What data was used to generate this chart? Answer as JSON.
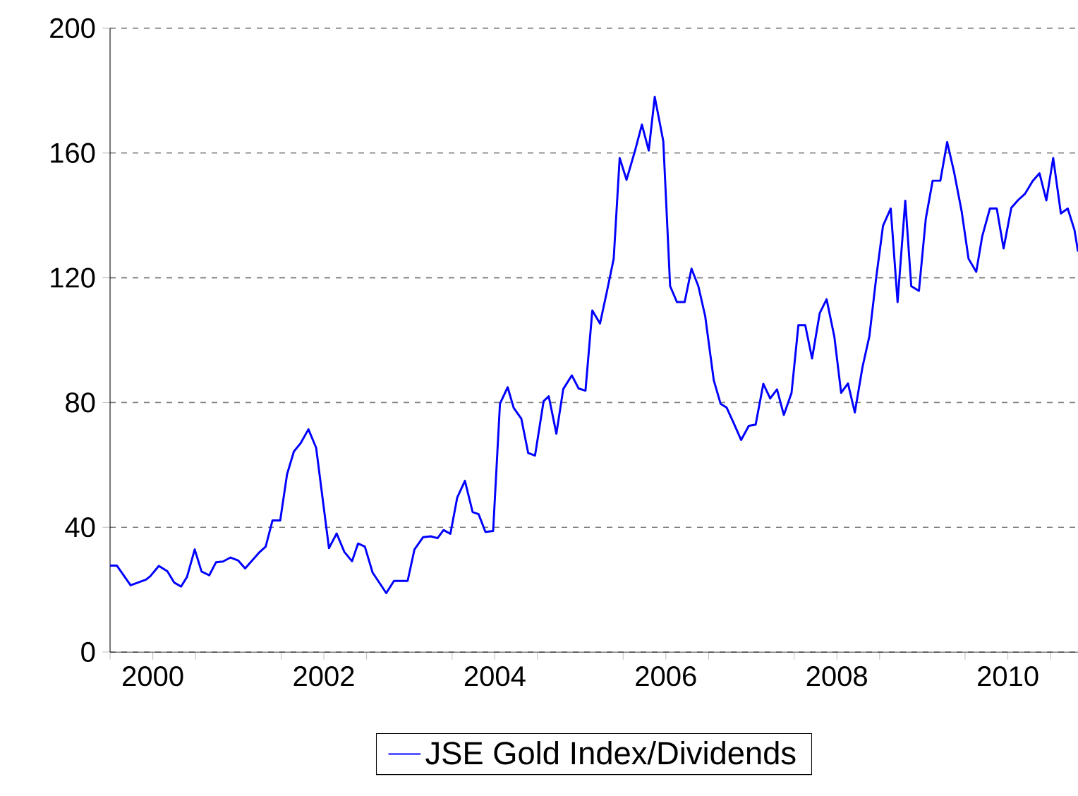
{
  "chart_data": {
    "type": "line",
    "ylim": [
      0,
      200
    ],
    "yticks": [
      0,
      40,
      80,
      120,
      160,
      200
    ],
    "xlim": [
      2000,
      2011.32
    ],
    "xticks": [
      {
        "value": 2000,
        "label": null
      },
      {
        "value": 2000.5,
        "label": "2000"
      },
      {
        "value": 2001,
        "label": null
      },
      {
        "value": 2002,
        "label": null
      },
      {
        "value": 2002.5,
        "label": "2002"
      },
      {
        "value": 2003,
        "label": null
      },
      {
        "value": 2004,
        "label": null
      },
      {
        "value": 2004.5,
        "label": "2004"
      },
      {
        "value": 2005,
        "label": null
      },
      {
        "value": 2006,
        "label": null
      },
      {
        "value": 2006.5,
        "label": "2006"
      },
      {
        "value": 2007,
        "label": null
      },
      {
        "value": 2008,
        "label": null
      },
      {
        "value": 2008.5,
        "label": "2008"
      },
      {
        "value": 2009,
        "label": null
      },
      {
        "value": 2010,
        "label": null
      },
      {
        "value": 2010.5,
        "label": "2010"
      },
      {
        "value": 2011,
        "label": null
      }
    ],
    "grid": "y",
    "legend": "bottom",
    "line_style": "solid",
    "marker": "none",
    "series": [
      {
        "name": "JSE Gold Index/Dividends",
        "color": "#0000ff",
        "x": [
          2000.0,
          2000.08,
          2000.24,
          2000.42,
          2000.47,
          2000.57,
          2000.67,
          2000.75,
          2000.83,
          2000.9,
          2000.99,
          2001.07,
          2001.16,
          2001.24,
          2001.32,
          2001.41,
          2001.5,
          2001.58,
          2001.74,
          2001.82,
          2001.9,
          2001.99,
          2002.07,
          2002.15,
          2002.23,
          2002.32,
          2002.41,
          2002.56,
          2002.65,
          2002.74,
          2002.83,
          2002.9,
          2002.98,
          2003.07,
          2003.23,
          2003.32,
          2003.48,
          2003.56,
          2003.66,
          2003.75,
          2003.83,
          2003.9,
          2003.98,
          2004.06,
          2004.15,
          2004.24,
          2004.31,
          2004.39,
          2004.48,
          2004.56,
          2004.65,
          2004.72,
          2004.81,
          2004.89,
          2004.97,
          2005.07,
          2005.13,
          2005.22,
          2005.3,
          2005.4,
          2005.48,
          2005.56,
          2005.64,
          2005.73,
          2005.81,
          2005.89,
          2005.96,
          2006.04,
          2006.14,
          2006.22,
          2006.3,
          2006.37,
          2006.47,
          2006.55,
          2006.63,
          2006.72,
          2006.8,
          2006.88,
          2006.96,
          2007.06,
          2007.14,
          2007.21,
          2007.29,
          2007.38,
          2007.47,
          2007.55,
          2007.64,
          2007.72,
          2007.8,
          2007.88,
          2007.97,
          2008.05,
          2008.13,
          2008.21,
          2008.3,
          2008.38,
          2008.47,
          2008.55,
          2008.63,
          2008.71,
          2008.8,
          2008.88,
          2008.96,
          2009.04,
          2009.13,
          2009.21,
          2009.3,
          2009.37,
          2009.46,
          2009.54,
          2009.62,
          2009.71,
          2009.79,
          2009.87,
          2009.96,
          2010.04,
          2010.13,
          2010.2,
          2010.29,
          2010.37,
          2010.45,
          2010.54,
          2010.62,
          2010.7,
          2010.79,
          2010.87,
          2010.95,
          2011.03,
          2011.12,
          2011.2,
          2011.28,
          2011.32
        ],
        "values": [
          27.7,
          27.7,
          21.4,
          23.2,
          24.3,
          27.6,
          25.9,
          22.3,
          21.0,
          24.1,
          32.9,
          25.8,
          24.6,
          28.8,
          29.0,
          30.3,
          29.3,
          26.8,
          31.8,
          33.8,
          42.2,
          42.2,
          57.0,
          64.3,
          67.0,
          71.4,
          65.5,
          33.3,
          38.0,
          32.1,
          29.1,
          34.8,
          33.8,
          25.5,
          18.9,
          22.8,
          22.8,
          32.9,
          36.8,
          37.1,
          36.5,
          39.1,
          37.9,
          49.5,
          54.9,
          44.9,
          44.2,
          38.5,
          38.8,
          79.6,
          84.9,
          78.3,
          74.8,
          63.8,
          63.0,
          80.4,
          82.0,
          70.0,
          84.3,
          88.7,
          84.5,
          83.8,
          109.5,
          105.3,
          115.5,
          126.1,
          158.4,
          151.4,
          160.8,
          169.1,
          160.8,
          178.0,
          163.8,
          117.3,
          112.2,
          112.2,
          122.9,
          117.3,
          107.7,
          87.2,
          79.6,
          78.4,
          73.6,
          68.0,
          72.5,
          72.9,
          86.0,
          81.3,
          84.2,
          76.0,
          83.1,
          104.8,
          104.8,
          94.1,
          108.7,
          113.1,
          101.2,
          83.1,
          86.1,
          76.8,
          91.4,
          101.2,
          120.0,
          136.7,
          142.2,
          112.2,
          144.7,
          117.3,
          115.8,
          138.9,
          151.1,
          151.1,
          163.5,
          154.0,
          141.2,
          126.1,
          121.9,
          133.3,
          142.2,
          142.2,
          129.4,
          142.4,
          144.9,
          146.9,
          151.0,
          153.5,
          144.8,
          158.4,
          140.6,
          142.2,
          135.2,
          128.4
        ]
      }
    ]
  }
}
